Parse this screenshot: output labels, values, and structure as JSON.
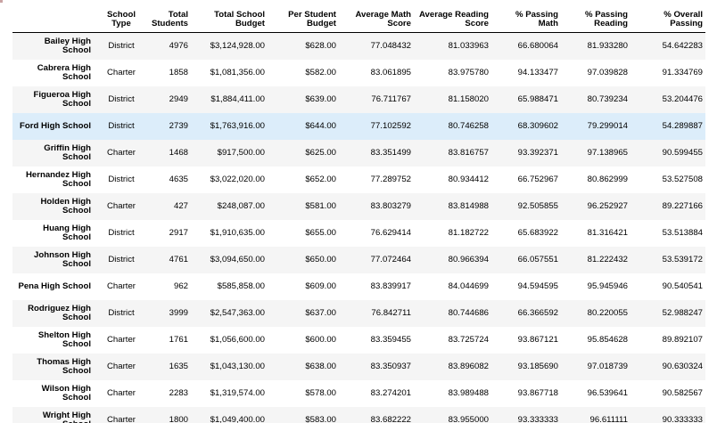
{
  "table": {
    "columns": [
      "School\nType",
      "Total\nStudents",
      "Total School\nBudget",
      "Per Student\nBudget",
      "Average Math\nScore",
      "Average Reading\nScore",
      "% Passing\nMath",
      "% Passing\nReading",
      "% Overall\nPassing"
    ],
    "hovered_row_index": 3,
    "rows": [
      {
        "name": "Bailey High School",
        "type": "District",
        "students": "4976",
        "budget": "$3,124,928.00",
        "per_student": "$628.00",
        "math": "77.048432",
        "reading": "81.033963",
        "pass_math": "66.680064",
        "pass_reading": "81.933280",
        "overall": "54.642283"
      },
      {
        "name": "Cabrera High School",
        "type": "Charter",
        "students": "1858",
        "budget": "$1,081,356.00",
        "per_student": "$582.00",
        "math": "83.061895",
        "reading": "83.975780",
        "pass_math": "94.133477",
        "pass_reading": "97.039828",
        "overall": "91.334769"
      },
      {
        "name": "Figueroa High School",
        "type": "District",
        "students": "2949",
        "budget": "$1,884,411.00",
        "per_student": "$639.00",
        "math": "76.711767",
        "reading": "81.158020",
        "pass_math": "65.988471",
        "pass_reading": "80.739234",
        "overall": "53.204476"
      },
      {
        "name": "Ford High School",
        "type": "District",
        "students": "2739",
        "budget": "$1,763,916.00",
        "per_student": "$644.00",
        "math": "77.102592",
        "reading": "80.746258",
        "pass_math": "68.309602",
        "pass_reading": "79.299014",
        "overall": "54.289887"
      },
      {
        "name": "Griffin High School",
        "type": "Charter",
        "students": "1468",
        "budget": "$917,500.00",
        "per_student": "$625.00",
        "math": "83.351499",
        "reading": "83.816757",
        "pass_math": "93.392371",
        "pass_reading": "97.138965",
        "overall": "90.599455"
      },
      {
        "name": "Hernandez High School",
        "type": "District",
        "students": "4635",
        "budget": "$3,022,020.00",
        "per_student": "$652.00",
        "math": "77.289752",
        "reading": "80.934412",
        "pass_math": "66.752967",
        "pass_reading": "80.862999",
        "overall": "53.527508"
      },
      {
        "name": "Holden High School",
        "type": "Charter",
        "students": "427",
        "budget": "$248,087.00",
        "per_student": "$581.00",
        "math": "83.803279",
        "reading": "83.814988",
        "pass_math": "92.505855",
        "pass_reading": "96.252927",
        "overall": "89.227166"
      },
      {
        "name": "Huang High School",
        "type": "District",
        "students": "2917",
        "budget": "$1,910,635.00",
        "per_student": "$655.00",
        "math": "76.629414",
        "reading": "81.182722",
        "pass_math": "65.683922",
        "pass_reading": "81.316421",
        "overall": "53.513884"
      },
      {
        "name": "Johnson High School",
        "type": "District",
        "students": "4761",
        "budget": "$3,094,650.00",
        "per_student": "$650.00",
        "math": "77.072464",
        "reading": "80.966394",
        "pass_math": "66.057551",
        "pass_reading": "81.222432",
        "overall": "53.539172"
      },
      {
        "name": "Pena High School",
        "type": "Charter",
        "students": "962",
        "budget": "$585,858.00",
        "per_student": "$609.00",
        "math": "83.839917",
        "reading": "84.044699",
        "pass_math": "94.594595",
        "pass_reading": "95.945946",
        "overall": "90.540541"
      },
      {
        "name": "Rodriguez High School",
        "type": "District",
        "students": "3999",
        "budget": "$2,547,363.00",
        "per_student": "$637.00",
        "math": "76.842711",
        "reading": "80.744686",
        "pass_math": "66.366592",
        "pass_reading": "80.220055",
        "overall": "52.988247"
      },
      {
        "name": "Shelton High School",
        "type": "Charter",
        "students": "1761",
        "budget": "$1,056,600.00",
        "per_student": "$600.00",
        "math": "83.359455",
        "reading": "83.725724",
        "pass_math": "93.867121",
        "pass_reading": "95.854628",
        "overall": "89.892107"
      },
      {
        "name": "Thomas High School",
        "type": "Charter",
        "students": "1635",
        "budget": "$1,043,130.00",
        "per_student": "$638.00",
        "math": "83.350937",
        "reading": "83.896082",
        "pass_math": "93.185690",
        "pass_reading": "97.018739",
        "overall": "90.630324"
      },
      {
        "name": "Wilson High School",
        "type": "Charter",
        "students": "2283",
        "budget": "$1,319,574.00",
        "per_student": "$578.00",
        "math": "83.274201",
        "reading": "83.989488",
        "pass_math": "93.867718",
        "pass_reading": "96.539641",
        "overall": "90.582567"
      },
      {
        "name": "Wright High School",
        "type": "Charter",
        "students": "1800",
        "budget": "$1,049,400.00",
        "per_student": "$583.00",
        "math": "83.682222",
        "reading": "83.955000",
        "pass_math": "93.333333",
        "pass_reading": "96.611111",
        "overall": "90.333333"
      }
    ]
  }
}
